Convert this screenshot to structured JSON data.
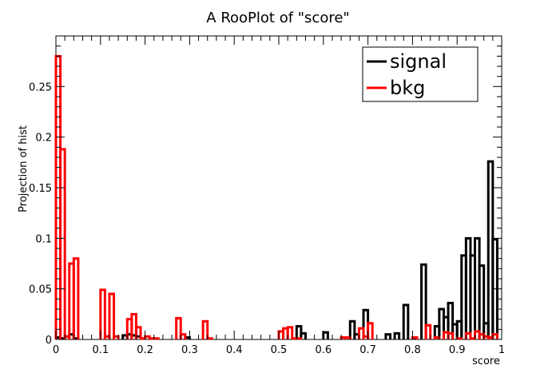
{
  "chart_data": {
    "type": "histogram",
    "title": "A RooPlot of \"score\"",
    "xlabel": "score",
    "ylabel": "Projection of hist",
    "xlim": [
      0,
      1
    ],
    "ylim": [
      0,
      0.3
    ],
    "x_ticks": [
      "0",
      "0.1",
      "0.2",
      "0.3",
      "0.4",
      "0.5",
      "0.6",
      "0.7",
      "0.8",
      "0.9",
      "1"
    ],
    "y_ticks": [
      "0",
      "0.05",
      "0.1",
      "0.15",
      "0.2",
      "0.25"
    ],
    "bins": 100,
    "grid": false,
    "legend_position": "top-right",
    "series": [
      {
        "name": "signal",
        "color": "#000000",
        "values": [
          0.002,
          0.001,
          0.003,
          0.005,
          0.001,
          0,
          0,
          0,
          0,
          0,
          0,
          0,
          0,
          0,
          0,
          0.004,
          0.005,
          0.004,
          0.003,
          0,
          0,
          0,
          0,
          0,
          0,
          0,
          0,
          0,
          0,
          0.002,
          0,
          0,
          0,
          0,
          0,
          0,
          0,
          0,
          0,
          0,
          0,
          0,
          0,
          0,
          0,
          0,
          0,
          0,
          0,
          0,
          0,
          0,
          0,
          0,
          0.013,
          0.006,
          0,
          0,
          0,
          0,
          0.007,
          0,
          0,
          0,
          0,
          0,
          0.018,
          0.005,
          0,
          0.029,
          0,
          0,
          0,
          0,
          0.005,
          0,
          0.006,
          0,
          0.034,
          0,
          0.001,
          0,
          0.074,
          0,
          0,
          0.013,
          0.03,
          0.022,
          0.036,
          0.015,
          0.018,
          0.083,
          0.1,
          0.083,
          0.1,
          0.073,
          0.016,
          0.176,
          0.099,
          0
        ]
      },
      {
        "name": "bkg",
        "color": "#ff0000",
        "values": [
          0.28,
          0.188,
          0.003,
          0.075,
          0.08,
          0,
          0,
          0,
          0,
          0,
          0.049,
          0.003,
          0.045,
          0.003,
          0,
          0,
          0.02,
          0.025,
          0.012,
          0.001,
          0.003,
          0.001,
          0.001,
          0,
          0,
          0,
          0,
          0.021,
          0.005,
          0,
          0,
          0,
          0,
          0.018,
          0.001,
          0,
          0,
          0,
          0,
          0,
          0,
          0,
          0,
          0,
          0,
          0,
          0,
          0,
          0,
          0,
          0.008,
          0.011,
          0.012,
          0.001,
          0.001,
          0,
          0,
          0,
          0,
          0,
          0,
          0,
          0,
          0,
          0.002,
          0.002,
          0,
          0,
          0.011,
          0.003,
          0.016,
          0,
          0,
          0,
          0,
          0,
          0,
          0,
          0,
          0,
          0.002,
          0,
          0,
          0.014,
          0,
          0.002,
          0,
          0.007,
          0.006,
          0,
          0.001,
          0,
          0.006,
          0.001,
          0.008,
          0.005,
          0.003,
          0.002,
          0.005,
          0
        ]
      }
    ]
  }
}
